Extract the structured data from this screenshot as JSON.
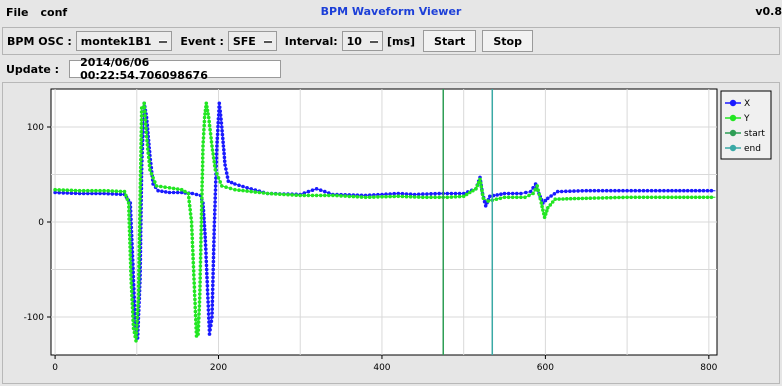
{
  "menu": {
    "items": [
      "File",
      "conf"
    ],
    "title": "BPM Waveform Viewer",
    "version": "v0.8"
  },
  "toolbar": {
    "osc_label": "BPM OSC :",
    "osc_value": "montek1B1",
    "event_label": "Event :",
    "event_value": "SFE",
    "interval_label": "Interval:",
    "interval_value": "10",
    "interval_unit": "[ms]",
    "start_label": "Start",
    "stop_label": "Stop"
  },
  "update": {
    "label": "Update :",
    "value": "2014/06/06 00:22:54.706098676"
  },
  "chart_data": {
    "type": "line",
    "xlim": [
      -5,
      810
    ],
    "ylim": [
      -140,
      140
    ],
    "x_ticks": [
      0,
      200,
      400,
      600,
      800
    ],
    "y_ticks": [
      100,
      0,
      -100
    ],
    "grid": true,
    "legend_position": "right",
    "series": [
      {
        "name": "X",
        "color": "#1a1aff",
        "points": [
          [
            0,
            31
          ],
          [
            30,
            30
          ],
          [
            60,
            30
          ],
          [
            85,
            29
          ],
          [
            92,
            20
          ],
          [
            95,
            -40
          ],
          [
            98,
            -105
          ],
          [
            101,
            -122
          ],
          [
            104,
            -60
          ],
          [
            106,
            60
          ],
          [
            109,
            125
          ],
          [
            112,
            110
          ],
          [
            116,
            70
          ],
          [
            120,
            40
          ],
          [
            126,
            33
          ],
          [
            140,
            31
          ],
          [
            155,
            31
          ],
          [
            168,
            30
          ],
          [
            178,
            28
          ],
          [
            181,
            20
          ],
          [
            184,
            -20
          ],
          [
            187,
            -80
          ],
          [
            189,
            -118
          ],
          [
            192,
            -100
          ],
          [
            195,
            0
          ],
          [
            198,
            80
          ],
          [
            201,
            125
          ],
          [
            204,
            100
          ],
          [
            208,
            60
          ],
          [
            212,
            43
          ],
          [
            220,
            40
          ],
          [
            235,
            36
          ],
          [
            260,
            30
          ],
          [
            300,
            29
          ],
          [
            320,
            35
          ],
          [
            340,
            29
          ],
          [
            380,
            28
          ],
          [
            400,
            29
          ],
          [
            420,
            30
          ],
          [
            440,
            29
          ],
          [
            470,
            30
          ],
          [
            500,
            30
          ],
          [
            515,
            35
          ],
          [
            520,
            47
          ],
          [
            523,
            30
          ],
          [
            527,
            17
          ],
          [
            532,
            27
          ],
          [
            550,
            30
          ],
          [
            570,
            30
          ],
          [
            582,
            32
          ],
          [
            588,
            40
          ],
          [
            592,
            30
          ],
          [
            597,
            20
          ],
          [
            603,
            25
          ],
          [
            615,
            32
          ],
          [
            650,
            33
          ],
          [
            700,
            33
          ],
          [
            750,
            33
          ],
          [
            808,
            33
          ]
        ]
      },
      {
        "name": "Y",
        "color": "#22e622",
        "points": [
          [
            0,
            34
          ],
          [
            30,
            33
          ],
          [
            60,
            33
          ],
          [
            85,
            32
          ],
          [
            90,
            20
          ],
          [
            93,
            -60
          ],
          [
            96,
            -112
          ],
          [
            99,
            -125
          ],
          [
            102,
            -80
          ],
          [
            104,
            20
          ],
          [
            106,
            120
          ],
          [
            109,
            125
          ],
          [
            112,
            90
          ],
          [
            116,
            55
          ],
          [
            124,
            38
          ],
          [
            140,
            36
          ],
          [
            155,
            34
          ],
          [
            163,
            30
          ],
          [
            167,
            0
          ],
          [
            170,
            -60
          ],
          [
            173,
            -120
          ],
          [
            175,
            -118
          ],
          [
            177,
            -80
          ],
          [
            179,
            0
          ],
          [
            181,
            80
          ],
          [
            183,
            110
          ],
          [
            185,
            125
          ],
          [
            188,
            110
          ],
          [
            192,
            80
          ],
          [
            196,
            55
          ],
          [
            204,
            38
          ],
          [
            220,
            34
          ],
          [
            260,
            30
          ],
          [
            300,
            28
          ],
          [
            340,
            28
          ],
          [
            380,
            26
          ],
          [
            420,
            27
          ],
          [
            450,
            26
          ],
          [
            480,
            26
          ],
          [
            500,
            27
          ],
          [
            515,
            35
          ],
          [
            520,
            45
          ],
          [
            524,
            25
          ],
          [
            530,
            22
          ],
          [
            550,
            26
          ],
          [
            575,
            26
          ],
          [
            585,
            30
          ],
          [
            590,
            38
          ],
          [
            595,
            20
          ],
          [
            599,
            5
          ],
          [
            603,
            15
          ],
          [
            612,
            24
          ],
          [
            650,
            25
          ],
          [
            700,
            26
          ],
          [
            750,
            26
          ],
          [
            808,
            26
          ]
        ]
      },
      {
        "name": "start",
        "color": "#2e9e55",
        "vline": 475
      },
      {
        "name": "end",
        "color": "#3aa9a5",
        "vline": 535
      }
    ]
  }
}
